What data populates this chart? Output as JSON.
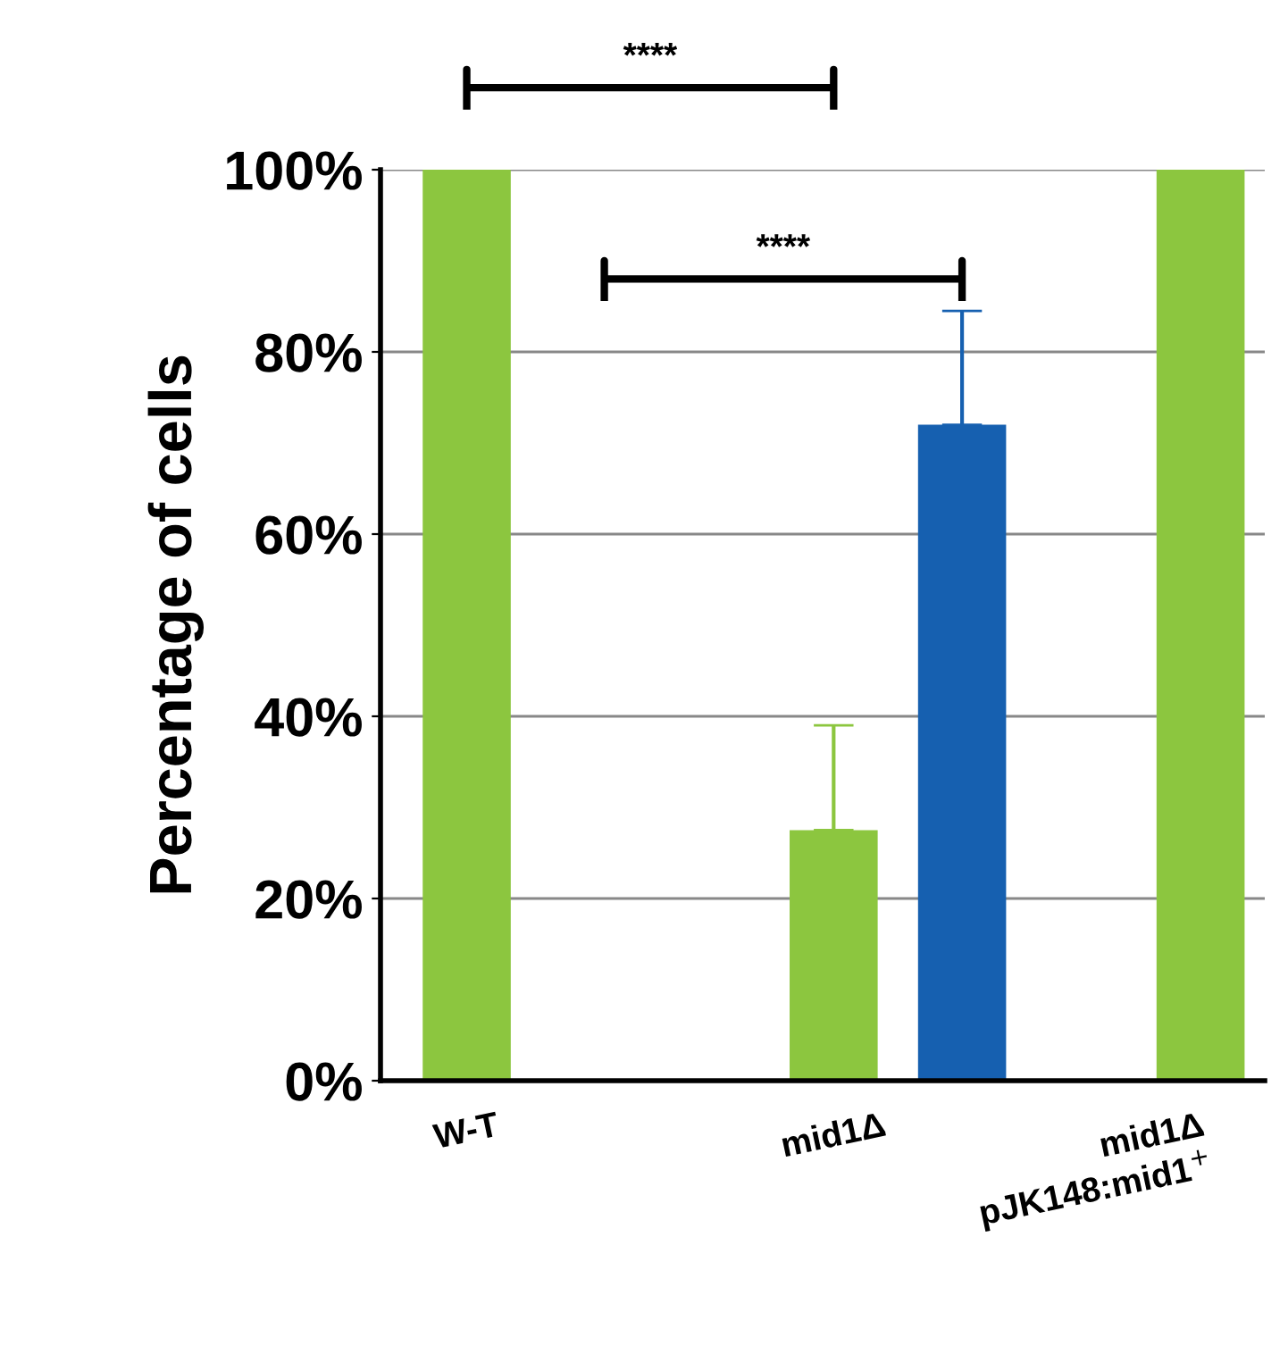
{
  "chart_data": {
    "type": "bar",
    "ylabel": "Percentage of cells",
    "categories": [
      "W-T",
      "mid1Δ",
      "mid1Δ\npJK148:mid1$^{+}$"
    ],
    "series": [
      {
        "color": "#8cc63f",
        "values": [
          100,
          27.5,
          100
        ],
        "errors": [
          null,
          [
            27.5,
            39
          ],
          null
        ]
      },
      {
        "color": "#1660b0",
        "values": [
          null,
          72,
          null
        ],
        "errors": [
          null,
          [
            72,
            84.5
          ],
          null
        ]
      }
    ],
    "ylim": [
      0,
      100
    ],
    "yticks": [
      {
        "value": 0,
        "label": "0%"
      },
      {
        "value": 20,
        "label": "20%"
      },
      {
        "value": 40,
        "label": "40%"
      },
      {
        "value": 60,
        "label": "60%"
      },
      {
        "value": 80,
        "label": "80%"
      },
      {
        "value": 100,
        "label": "100%"
      }
    ],
    "grid": "y",
    "annotations": [
      "****",
      "****"
    ]
  }
}
